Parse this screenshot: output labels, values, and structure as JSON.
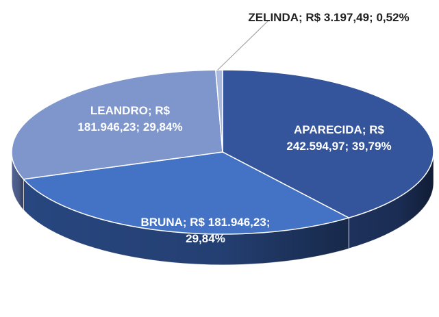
{
  "chart_data": {
    "type": "pie3d",
    "categories": [
      "APARECIDA",
      "BRUNA",
      "LEANDRO",
      "ZELINDA"
    ],
    "values": [
      242594.97,
      181946.23,
      181946.23,
      3197.49
    ],
    "value_labels": [
      "R$ 242.594,97",
      "R$ 181.946,23",
      "R$ 181.946,23",
      "R$ 3.197,49"
    ],
    "percents": [
      39.79,
      29.84,
      29.84,
      0.52
    ],
    "percent_labels": [
      "39,79%",
      "29,84%",
      "29,84%",
      "0,52%"
    ],
    "label_separator": "; ",
    "colors": [
      "#34559b",
      "#4472c4",
      "#7f96cc",
      "#a9b8dc"
    ],
    "side_colors": [
      "#1f3461",
      "#2a4a86",
      "#56699a",
      "#7d8cb0"
    ]
  }
}
